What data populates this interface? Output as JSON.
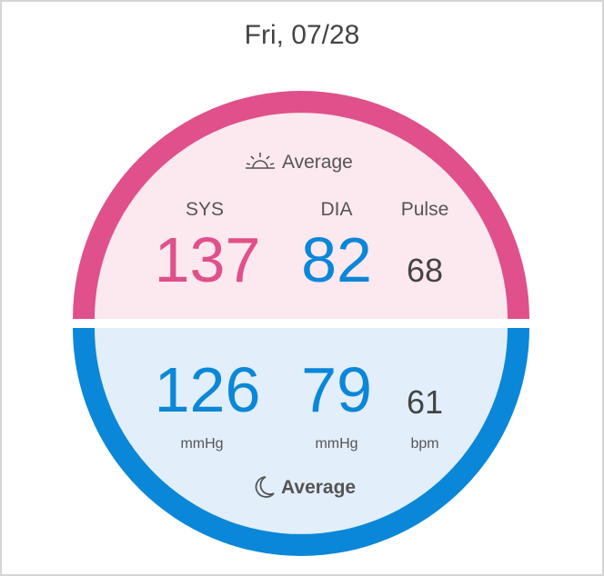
{
  "header": {
    "date": "Fri, 07/28"
  },
  "morning": {
    "label": "Average",
    "columns": [
      {
        "name": "SYS",
        "value": 137
      },
      {
        "name": "DIA",
        "value": 82
      },
      {
        "name": "Pulse",
        "value": 68
      }
    ]
  },
  "evening": {
    "label": "Average",
    "values": [
      126,
      79,
      61
    ],
    "units": [
      "mmHg",
      "mmHg",
      "bpm"
    ]
  }
}
